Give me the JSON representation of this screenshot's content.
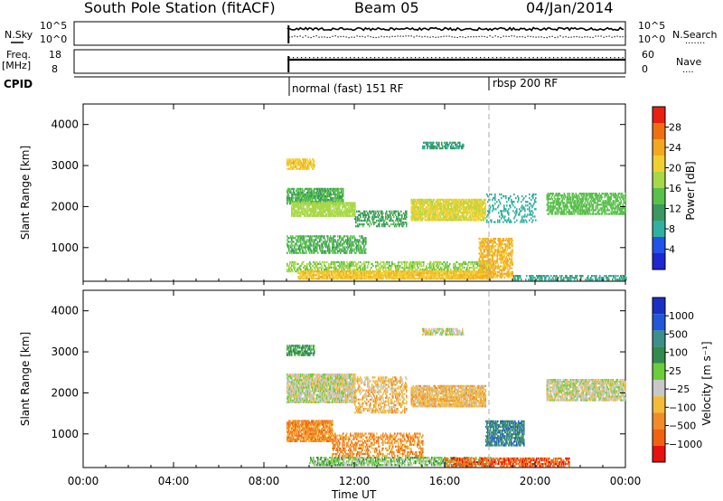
{
  "header": {
    "station": "South Pole Station (fitACF)",
    "beam": "Beam 05",
    "date": "04/Jan/2014"
  },
  "top_panels": {
    "nsky": {
      "label": "N.Sky",
      "ticks_left": [
        "10^5",
        "10^0"
      ],
      "ticks_right": [
        "10^5",
        "10^0"
      ],
      "right_label": "N.Search",
      "right_marker": "......."
    },
    "freq": {
      "label": "Freq.",
      "unit": "[MHz]",
      "ticks_left": [
        "18",
        "8"
      ],
      "ticks_right": [
        "60",
        "0"
      ],
      "right_label": "Nave",
      "right_marker": "...."
    },
    "cpid": {
      "label": "CPID",
      "modes": [
        "normal (fast) 151 RF",
        "rbsp 200 RF"
      ]
    }
  },
  "colors": {
    "power": [
      "#1d28d0",
      "#2252e8",
      "#30b0a0",
      "#3a9860",
      "#5ac04c",
      "#a8d848",
      "#f0d030",
      "#f4a820",
      "#f07010",
      "#e82010"
    ],
    "velocity": [
      "#1b2fc4",
      "#2356d8",
      "#3d8f8a",
      "#338a4d",
      "#6ccc3c",
      "#c8c8c8",
      "#f3bb38",
      "#f18c28",
      "#f06210",
      "#e81010"
    ]
  },
  "chart_data": [
    {
      "type": "heatmap",
      "name": "power",
      "ylabel": "Slant Range [km]",
      "yticks": [
        "1000",
        "2000",
        "3000",
        "4000"
      ],
      "ylim": [
        180,
        4500
      ],
      "xlim": [
        0,
        24
      ],
      "colorbar": {
        "label": "Power [dB]",
        "ticks": [
          "4",
          "8",
          "12",
          "16",
          "20",
          "24",
          "28"
        ],
        "range": [
          0,
          30
        ]
      },
      "regions": [
        {
          "t0": 9.0,
          "t1": 10.2,
          "r0": 2900,
          "r1": 3150,
          "level": 19,
          "density": 0.7
        },
        {
          "t0": 9.0,
          "t1": 11.5,
          "r0": 2050,
          "r1": 2450,
          "level": 11,
          "density": 0.75
        },
        {
          "t0": 9.2,
          "t1": 12.0,
          "r0": 1750,
          "r1": 2100,
          "level": 15,
          "density": 0.8
        },
        {
          "t0": 12.0,
          "t1": 14.3,
          "r0": 1500,
          "r1": 1900,
          "level": 10,
          "density": 0.45
        },
        {
          "t0": 14.5,
          "t1": 17.8,
          "r0": 1650,
          "r1": 2150,
          "level": 17,
          "density": 0.8
        },
        {
          "t0": 15.0,
          "t1": 16.8,
          "r0": 3400,
          "r1": 3550,
          "level": 8,
          "density": 0.6
        },
        {
          "t0": 17.8,
          "t1": 20.0,
          "r0": 1600,
          "r1": 2300,
          "level": 6,
          "density": 0.22
        },
        {
          "t0": 20.5,
          "t1": 24.0,
          "r0": 1800,
          "r1": 2300,
          "level": 12,
          "density": 0.6
        },
        {
          "t0": 9.0,
          "t1": 12.5,
          "r0": 850,
          "r1": 1300,
          "level": 11,
          "density": 0.55
        },
        {
          "t0": 9.0,
          "t1": 18.0,
          "r0": 400,
          "r1": 650,
          "level": 14,
          "density": 0.5
        },
        {
          "t0": 9.5,
          "t1": 18.0,
          "r0": 220,
          "r1": 420,
          "level": 19,
          "density": 0.85
        },
        {
          "t0": 17.5,
          "t1": 19.0,
          "r0": 250,
          "r1": 1200,
          "level": 20,
          "density": 0.6
        },
        {
          "t0": 19.0,
          "t1": 24.0,
          "r0": 200,
          "r1": 330,
          "level": 7,
          "density": 0.5
        }
      ]
    },
    {
      "type": "heatmap",
      "name": "velocity",
      "ylabel": "Slant Range [km]",
      "yticks": [
        "1000",
        "2000",
        "3000",
        "4000"
      ],
      "ylim": [
        180,
        4500
      ],
      "xlim": [
        0,
        24
      ],
      "colorbar": {
        "label": "Velocity [m s⁻¹]",
        "ticks": [
          "1000",
          "500",
          "100",
          "25",
          "−25",
          "−100",
          "−500",
          "−1000"
        ]
      },
      "regions": [
        {
          "t0": 9.0,
          "t1": 10.2,
          "r0": 2900,
          "r1": 3150,
          "level": 3,
          "density": 0.7
        },
        {
          "t0": 9.0,
          "t1": 12.0,
          "r0": 1750,
          "r1": 2450,
          "level": 5,
          "density": 0.85
        },
        {
          "t0": 12.0,
          "t1": 14.3,
          "r0": 1500,
          "r1": 2400,
          "level": 6,
          "density": 0.45
        },
        {
          "t0": 14.5,
          "t1": 17.8,
          "r0": 1650,
          "r1": 2150,
          "level": 6,
          "density": 0.8
        },
        {
          "t0": 15.0,
          "t1": 16.8,
          "r0": 3400,
          "r1": 3550,
          "level": 5,
          "density": 0.6
        },
        {
          "t0": 20.5,
          "t1": 24.0,
          "r0": 1800,
          "r1": 2300,
          "level": 5,
          "density": 0.75
        },
        {
          "t0": 9.0,
          "t1": 11.0,
          "r0": 800,
          "r1": 1300,
          "level": 7,
          "density": 0.8
        },
        {
          "t0": 11.0,
          "t1": 15.0,
          "r0": 400,
          "r1": 1000,
          "level": 7,
          "density": 0.45
        },
        {
          "t0": 17.8,
          "t1": 19.5,
          "r0": 700,
          "r1": 1300,
          "level": 2,
          "density": 0.7
        },
        {
          "t0": 10.0,
          "t1": 18.0,
          "r0": 220,
          "r1": 420,
          "level": 4,
          "density": 0.6
        },
        {
          "t0": 16.0,
          "t1": 21.5,
          "r0": 200,
          "r1": 400,
          "level": 8,
          "density": 0.65
        }
      ]
    }
  ],
  "xaxis": {
    "ticks": [
      "00:00",
      "04:00",
      "08:00",
      "12:00",
      "16:00",
      "20:00",
      "00:00"
    ],
    "label": "Time UT"
  }
}
